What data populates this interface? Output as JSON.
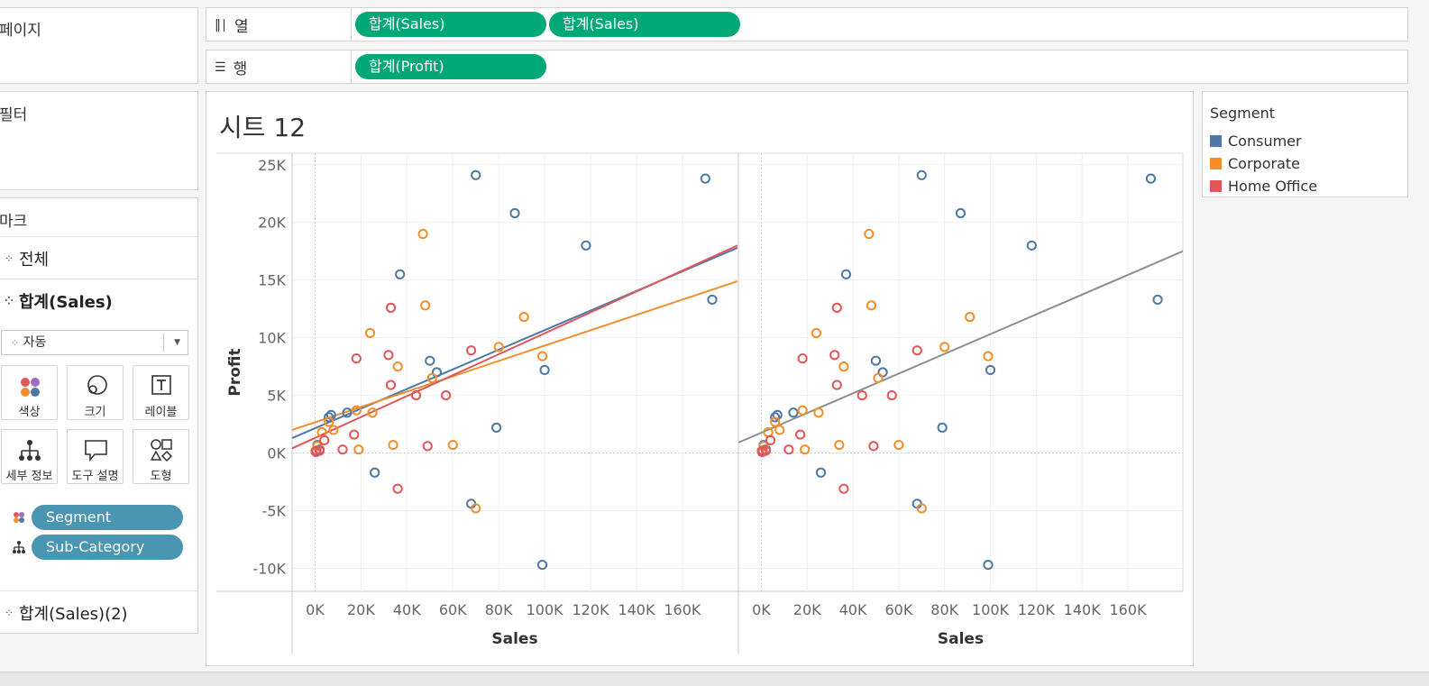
{
  "pages_panel": {
    "title": "페이지"
  },
  "filters_panel": {
    "title": "필터"
  },
  "shelves": {
    "columns": {
      "label": "열",
      "pills": [
        "합계(Sales)",
        "합계(Sales)"
      ]
    },
    "rows": {
      "label": "행",
      "pills": [
        "합계(Profit)"
      ]
    }
  },
  "marks": {
    "title": "마크",
    "all_label": "전체",
    "sales_label": "합계(Sales)",
    "mark_type": "자동",
    "buttons": {
      "color": "색상",
      "size": "크기",
      "label": "레이블",
      "detail": "세부 정보",
      "tooltip": "도구 설명",
      "shape": "도형"
    },
    "fields": [
      "Segment",
      "Sub-Category"
    ],
    "sales2_label": "합계(Sales)(2)"
  },
  "sheet": {
    "title": "시트 12"
  },
  "legend": {
    "title": "Segment",
    "items": [
      {
        "label": "Consumer",
        "color": "#4e79a7"
      },
      {
        "label": "Corporate",
        "color": "#f28e2b"
      },
      {
        "label": "Home Office",
        "color": "#e15759"
      }
    ]
  },
  "chart_data": {
    "type": "scatter",
    "ylabel": "Profit",
    "xlabel": "Sales",
    "x_ticks": [
      "0K",
      "20K",
      "40K",
      "60K",
      "80K",
      "100K",
      "120K",
      "140K",
      "160K"
    ],
    "y_ticks": [
      "25K",
      "20K",
      "15K",
      "10K",
      "5K",
      "0K",
      "-5K",
      "-10K"
    ],
    "xlim": [
      -10000,
      184000
    ],
    "ylim": [
      -12000,
      26000
    ],
    "panes": [
      {
        "name": "left",
        "trend": "per-segment"
      },
      {
        "name": "right",
        "trend": "overall",
        "trend_color": "#8f8f8f"
      }
    ],
    "series": [
      {
        "name": "Consumer",
        "color": "#4e79a7",
        "points": [
          [
            70000,
            24100
          ],
          [
            170000,
            23800
          ],
          [
            87000,
            20800
          ],
          [
            118000,
            18000
          ],
          [
            37000,
            15500
          ],
          [
            173000,
            13300
          ],
          [
            50000,
            8000
          ],
          [
            53000,
            7000
          ],
          [
            100000,
            7200
          ],
          [
            7000,
            3300
          ],
          [
            6000,
            3100
          ],
          [
            14000,
            3500
          ],
          [
            79000,
            2200
          ],
          [
            1000,
            700
          ],
          [
            2000,
            300
          ],
          [
            26000,
            -1700
          ],
          [
            68000,
            -4400
          ],
          [
            99000,
            -9700
          ],
          [
            500,
            100
          ]
        ],
        "trend": [
          [
            -10000,
            1300
          ],
          [
            184000,
            17800
          ]
        ]
      },
      {
        "name": "Corporate",
        "color": "#f28e2b",
        "points": [
          [
            47000,
            19000
          ],
          [
            48000,
            12800
          ],
          [
            91000,
            11800
          ],
          [
            24000,
            10400
          ],
          [
            80000,
            9200
          ],
          [
            99000,
            8400
          ],
          [
            36000,
            7500
          ],
          [
            51000,
            6500
          ],
          [
            25000,
            3500
          ],
          [
            18000,
            3700
          ],
          [
            6000,
            2700
          ],
          [
            8000,
            2000
          ],
          [
            3000,
            1800
          ],
          [
            1000,
            600
          ],
          [
            19000,
            300
          ],
          [
            34000,
            700
          ],
          [
            60000,
            700
          ],
          [
            70000,
            -4800
          ],
          [
            200,
            200
          ]
        ],
        "trend": [
          [
            -10000,
            2000
          ],
          [
            184000,
            14900
          ]
        ]
      },
      {
        "name": "Home Office",
        "color": "#e15759",
        "points": [
          [
            33000,
            12600
          ],
          [
            32000,
            8500
          ],
          [
            18000,
            8200
          ],
          [
            68000,
            8900
          ],
          [
            33000,
            5900
          ],
          [
            44000,
            5000
          ],
          [
            57000,
            5000
          ],
          [
            17000,
            1600
          ],
          [
            4000,
            1100
          ],
          [
            12000,
            300
          ],
          [
            49000,
            600
          ],
          [
            36000,
            -3100
          ],
          [
            2000,
            200
          ],
          [
            600,
            200
          ],
          [
            300,
            100
          ]
        ],
        "trend": [
          [
            -10000,
            400
          ],
          [
            184000,
            18000
          ]
        ]
      }
    ],
    "overall_trend": [
      [
        -10000,
        900
      ],
      [
        184000,
        17500
      ]
    ]
  }
}
